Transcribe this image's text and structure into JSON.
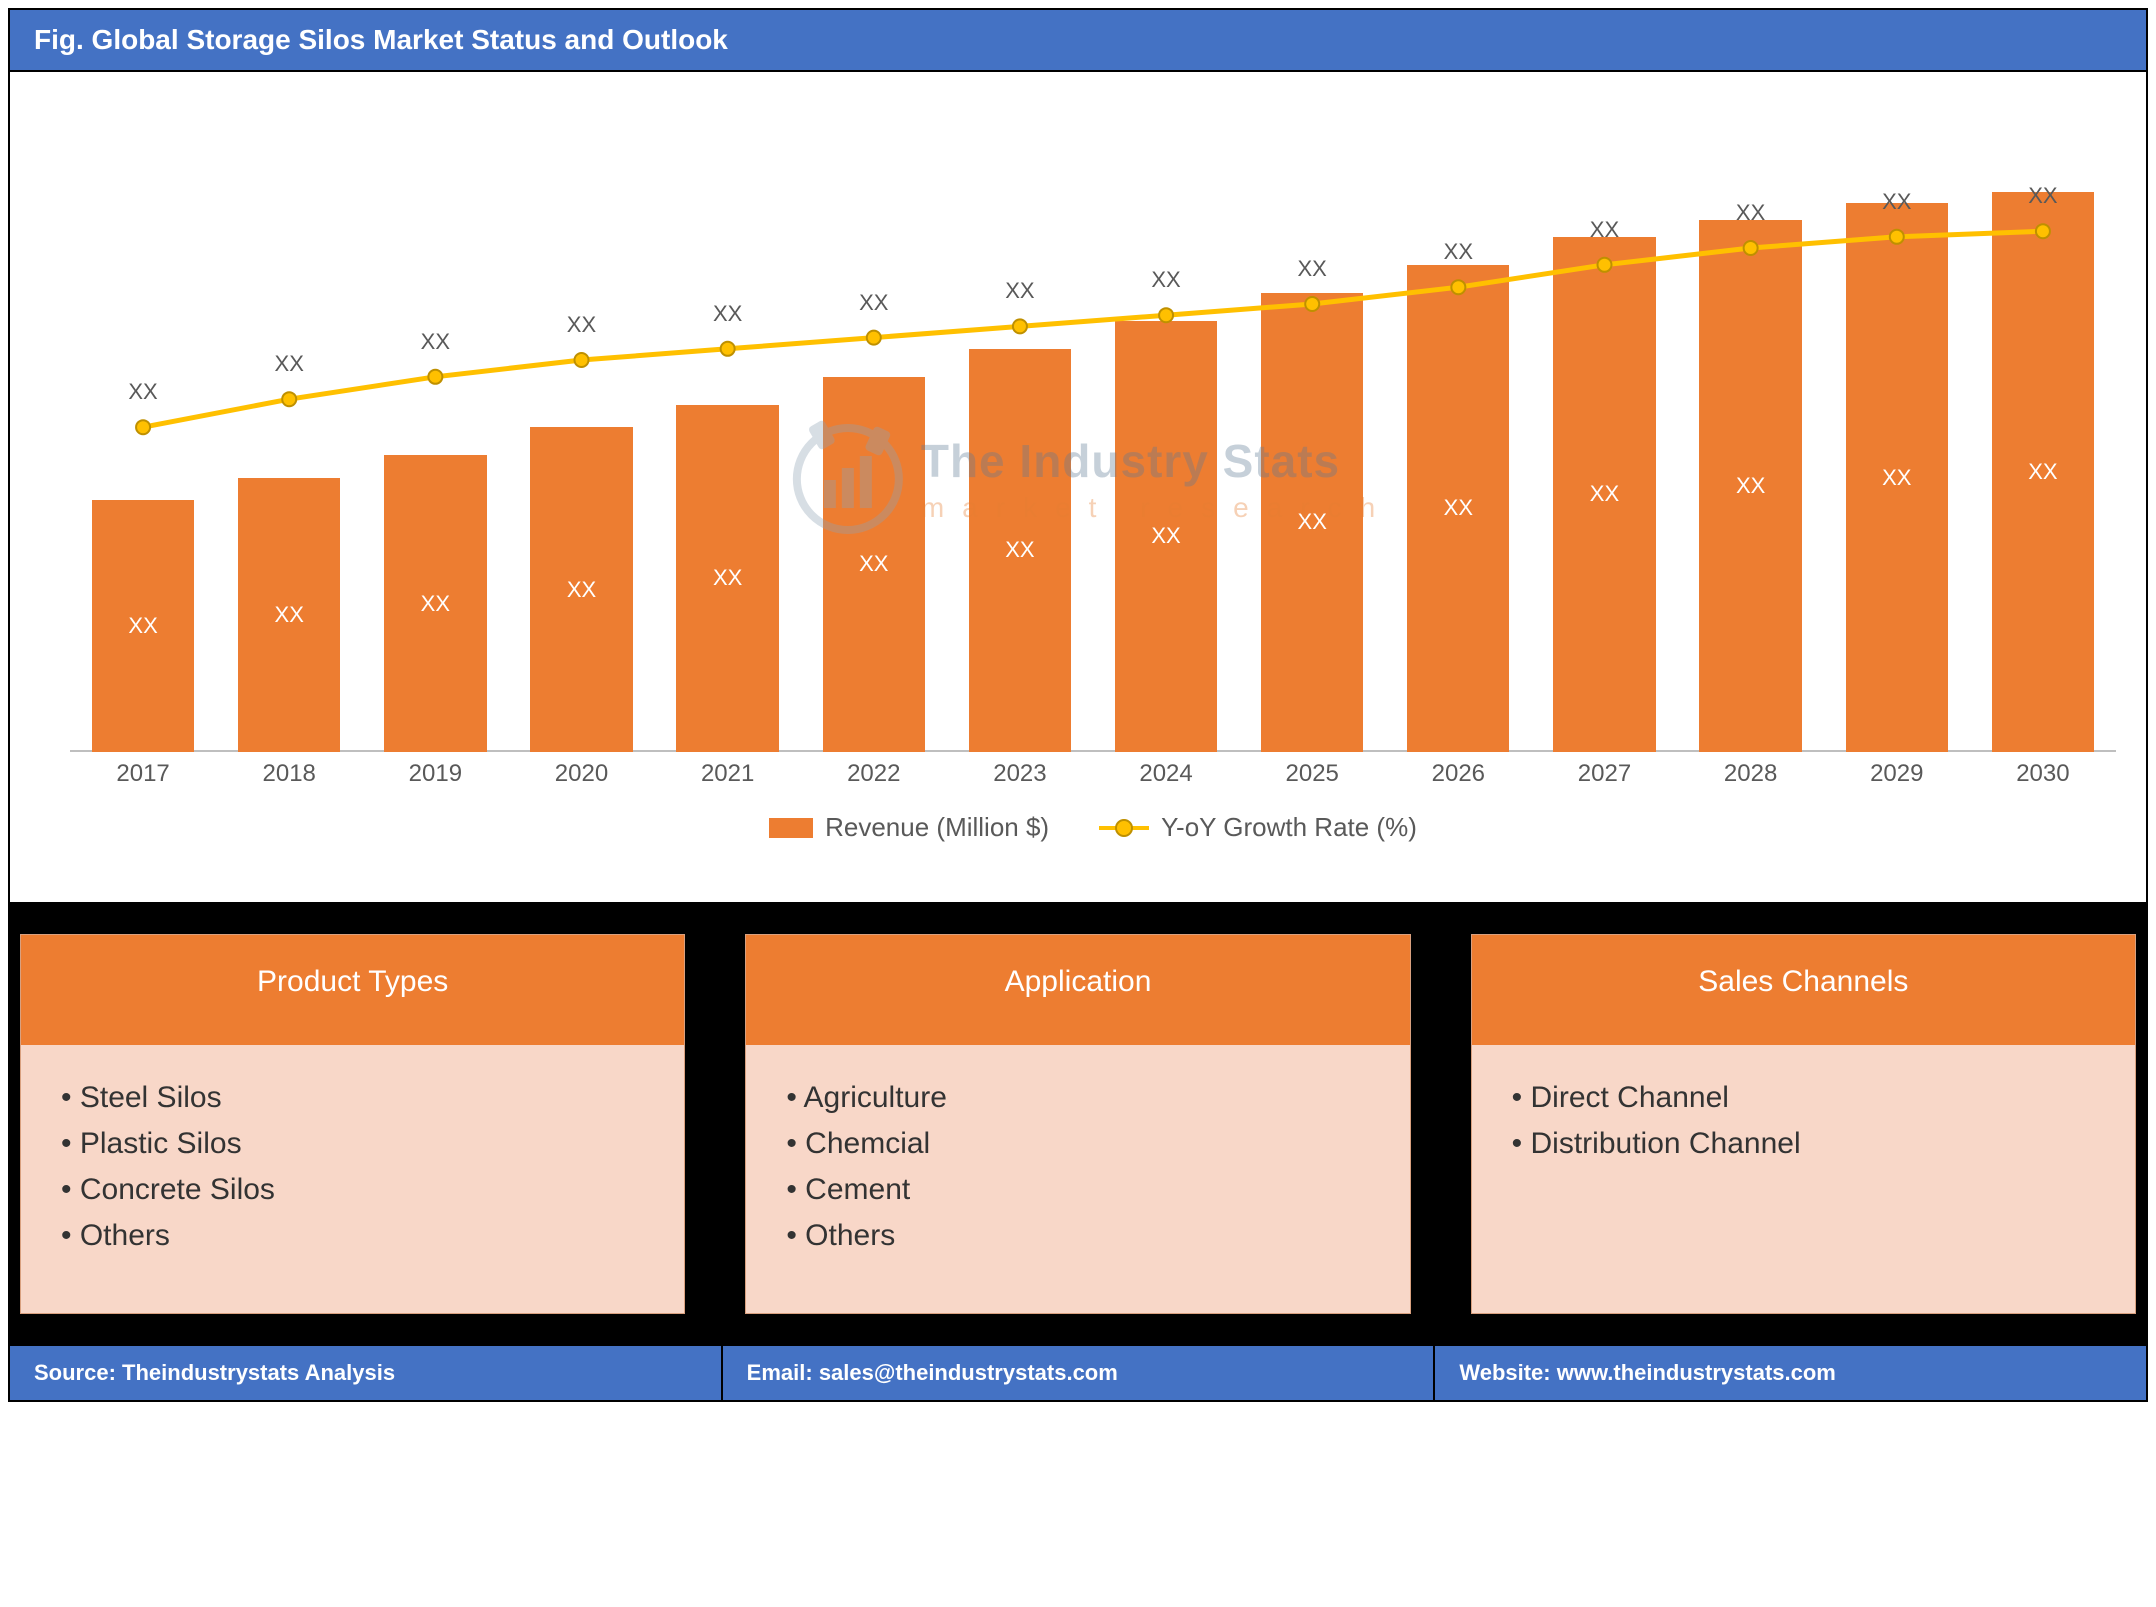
{
  "title": "Fig. Global Storage Silos Market Status and Outlook",
  "chart": {
    "type": "bar+line",
    "background_color": "#ffffff",
    "grid_color": "#bfbfbf",
    "categories": [
      "2017",
      "2018",
      "2019",
      "2020",
      "2021",
      "2022",
      "2023",
      "2024",
      "2025",
      "2026",
      "2027",
      "2028",
      "2029",
      "2030"
    ],
    "bar_series": {
      "name": "Revenue (Million $)",
      "color": "#ed7d31",
      "values_pct_of_max": [
        45,
        49,
        53,
        58,
        62,
        67,
        72,
        77,
        82,
        87,
        92,
        95,
        98,
        100
      ],
      "value_labels": [
        "XX",
        "XX",
        "XX",
        "XX",
        "XX",
        "XX",
        "XX",
        "XX",
        "XX",
        "XX",
        "XX",
        "XX",
        "XX",
        "XX"
      ],
      "bar_width_ratio": 0.7,
      "value_label_fontsize": 22,
      "value_label_color": "#ffffff"
    },
    "line_series": {
      "name": "Y-oY Growth Rate (%)",
      "color": "#ffc000",
      "marker_border": "#bf9000",
      "marker_fill": "#ffc000",
      "marker_size": 14,
      "line_width": 5,
      "point_labels": [
        "XX",
        "XX",
        "XX",
        "XX",
        "XX",
        "XX",
        "XX",
        "XX",
        "XX",
        "XX",
        "XX",
        "XX",
        "XX",
        "XX"
      ],
      "point_label_fontsize": 22,
      "point_label_color": "#595959",
      "values_pct": [
        58,
        63,
        67,
        70,
        72,
        74,
        76,
        78,
        80,
        83,
        87,
        90,
        92,
        93
      ]
    },
    "x_label_fontsize": 24,
    "x_label_color": "#595959",
    "ylim": [
      0,
      100
    ]
  },
  "legend": {
    "bar_label": "Revenue (Million $)",
    "line_label": "Y-oY Growth Rate (%)",
    "fontsize": 26,
    "color": "#595959"
  },
  "watermark": {
    "line1": "The Industry Stats",
    "line2": "market research",
    "text_color": "#5f7a94",
    "sub_color": "#e67e32",
    "icon_color": "#8fa3b5"
  },
  "panels": [
    {
      "title": "Product Types",
      "items": [
        "Steel Silos",
        "Plastic Silos",
        "Concrete Silos",
        "Others"
      ]
    },
    {
      "title": "Application",
      "items": [
        "Agriculture",
        "Chemcial",
        "Cement",
        "Others"
      ]
    },
    {
      "title": "Sales Channels",
      "items": [
        "Direct Channel",
        "Distribution Channel"
      ]
    }
  ],
  "panel_style": {
    "header_bg": "#ed7d31",
    "header_color": "#ffffff",
    "body_bg": "#f8d7c8",
    "border": "#d9a07f",
    "header_fontsize": 30,
    "item_fontsize": 30,
    "container_bg": "#000000"
  },
  "footer": {
    "bg": "#4472c4",
    "color": "#ffffff",
    "fontsize": 22,
    "source_label": "Source: ",
    "source_value": "Theindustrystats Analysis",
    "email_label": "Email: ",
    "email_value": "sales@theindustrystats.com",
    "website_label": "Website: ",
    "website_value": "www.theindustrystats.com"
  }
}
